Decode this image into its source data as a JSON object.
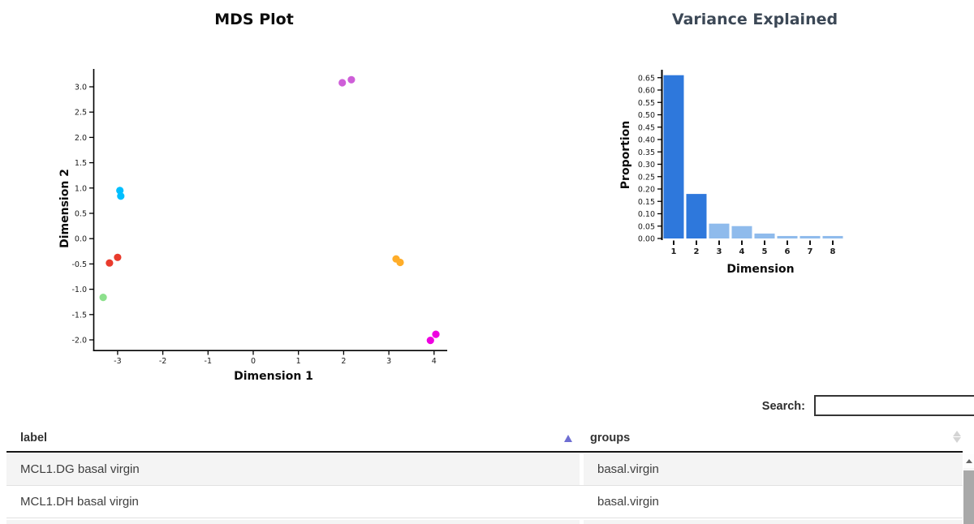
{
  "chart_data": [
    {
      "type": "scatter",
      "title": "MDS Plot",
      "xlabel": "Dimension 1",
      "ylabel": "Dimension 2",
      "xlim": [
        -3.9,
        4.4
      ],
      "ylim": [
        -2.35,
        3.35
      ],
      "x_ticks": [
        -3,
        -2,
        -1,
        0,
        1,
        2,
        3,
        4
      ],
      "y_ticks": [
        3.0,
        2.5,
        2.0,
        1.5,
        1.0,
        0.5,
        0.0,
        -0.5,
        -1.0,
        -1.5,
        -2.0
      ],
      "grid": false,
      "legend": "none",
      "series": [
        {
          "name": "skyblue",
          "color": "#00bfff",
          "points": [
            [
              -2.95,
              0.95
            ],
            [
              -2.93,
              0.84
            ]
          ]
        },
        {
          "name": "red",
          "color": "#e93b2d",
          "points": [
            [
              -3.18,
              -0.48
            ],
            [
              -3.0,
              -0.37
            ]
          ]
        },
        {
          "name": "lightgreen",
          "color": "#8ce08c",
          "points": [
            [
              -3.32,
              -1.16
            ]
          ]
        },
        {
          "name": "orchid",
          "color": "#ce5ed8",
          "points": [
            [
              1.97,
              3.08
            ],
            [
              2.17,
              3.14
            ]
          ]
        },
        {
          "name": "orange",
          "color": "#ffad29",
          "points": [
            [
              3.16,
              -0.4
            ],
            [
              3.25,
              -0.47
            ]
          ]
        },
        {
          "name": "magenta",
          "color": "#ee00e0",
          "points": [
            [
              3.92,
              -2.01
            ],
            [
              4.04,
              -1.89
            ]
          ]
        }
      ]
    },
    {
      "type": "bar",
      "title": "Variance Explained",
      "xlabel": "Dimension",
      "ylabel": "Proportion",
      "categories": [
        "1",
        "2",
        "3",
        "4",
        "5",
        "6",
        "7",
        "8"
      ],
      "values": [
        0.66,
        0.18,
        0.06,
        0.05,
        0.02,
        0.01,
        0.01,
        0.01
      ],
      "ylim": [
        0,
        0.65
      ],
      "y_ticks": [
        0.0,
        0.05,
        0.1,
        0.15,
        0.2,
        0.25,
        0.3,
        0.35,
        0.4,
        0.45,
        0.5,
        0.55,
        0.6,
        0.65
      ],
      "grid": false,
      "bar_colors": [
        "#2e78dc",
        "#2e78dc",
        "#8fbbec",
        "#8fbbec",
        "#8fbbec",
        "#8fbbec",
        "#8fbbec",
        "#8fbbec"
      ]
    }
  ],
  "table": {
    "search_label": "Search:",
    "search_value": "",
    "sort_asc_color": "#6e6ed2",
    "columns": [
      {
        "label": "label",
        "sort": "ascending"
      },
      {
        "label": "groups",
        "sort": "none"
      }
    ],
    "rows": [
      {
        "label": "MCL1.DG basal virgin",
        "groups": "basal.virgin"
      },
      {
        "label": "MCL1.DH basal virgin",
        "groups": "basal.virgin"
      }
    ]
  }
}
